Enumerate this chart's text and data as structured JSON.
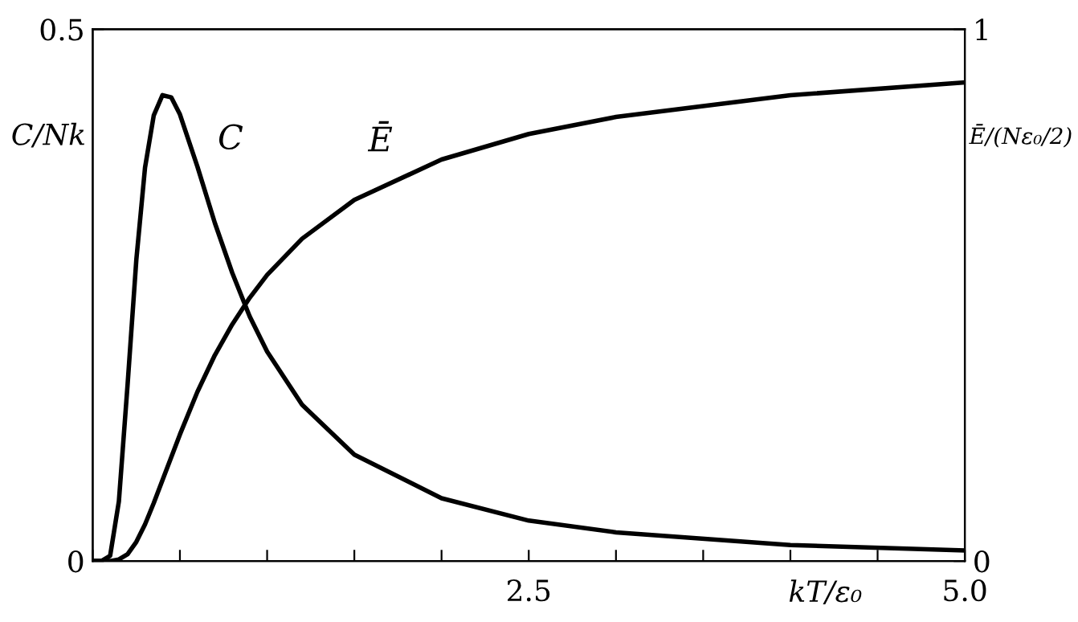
{
  "chart_data": {
    "type": "line",
    "xlabel": "kT/ε₀",
    "ylabel": "C/Nk",
    "y2label": "Ē/(Nε₀/2)",
    "xlim": [
      0,
      5
    ],
    "xticks": [
      {
        "value": 0,
        "label": null
      },
      {
        "value": 0.5,
        "label": null
      },
      {
        "value": 1,
        "label": null
      },
      {
        "value": 1.5,
        "label": null
      },
      {
        "value": 2,
        "label": null
      },
      2.5,
      {
        "value": 3,
        "label": null
      },
      {
        "value": 3.5,
        "label": null
      },
      {
        "value": 4,
        "label": null
      },
      {
        "value": 4.5,
        "label": null
      },
      {
        "value": 5,
        "label": "5.0"
      }
    ],
    "ylim": [
      0,
      0.5
    ],
    "yticks": [
      0,
      0.5
    ],
    "y2lim": [
      0,
      1
    ],
    "y2ticks": [
      0,
      1
    ],
    "grid": false,
    "legend": false,
    "series": [
      {
        "name": "C",
        "color": "#000000",
        "x": [
          0,
          0.05,
          0.1,
          0.15,
          0.2,
          0.25,
          0.3,
          0.35,
          0.4,
          0.45,
          0.5,
          0.6,
          0.7,
          0.8,
          0.9,
          1,
          1.2,
          1.5,
          2,
          2.5,
          3,
          4,
          5
        ],
        "values": [
          0,
          0,
          0.005,
          0.056,
          0.166,
          0.283,
          0.37,
          0.419,
          0.438,
          0.436,
          0.42,
          0.371,
          0.318,
          0.271,
          0.23,
          0.197,
          0.147,
          0.1,
          0.059,
          0.038,
          0.027,
          0.015,
          0.01
        ]
      },
      {
        "name": "Ē",
        "color": "#000000",
        "axis": "y2",
        "x": [
          0,
          0.05,
          0.1,
          0.15,
          0.2,
          0.25,
          0.3,
          0.35,
          0.4,
          0.5,
          0.6,
          0.7,
          0.8,
          0.9,
          1,
          1.2,
          1.5,
          2,
          2.5,
          3,
          4,
          5
        ],
        "values": [
          0,
          0,
          0,
          0.003,
          0.013,
          0.036,
          0.069,
          0.109,
          0.152,
          0.238,
          0.318,
          0.387,
          0.445,
          0.495,
          0.538,
          0.606,
          0.679,
          0.755,
          0.803,
          0.835,
          0.876,
          0.9
        ]
      }
    ]
  }
}
